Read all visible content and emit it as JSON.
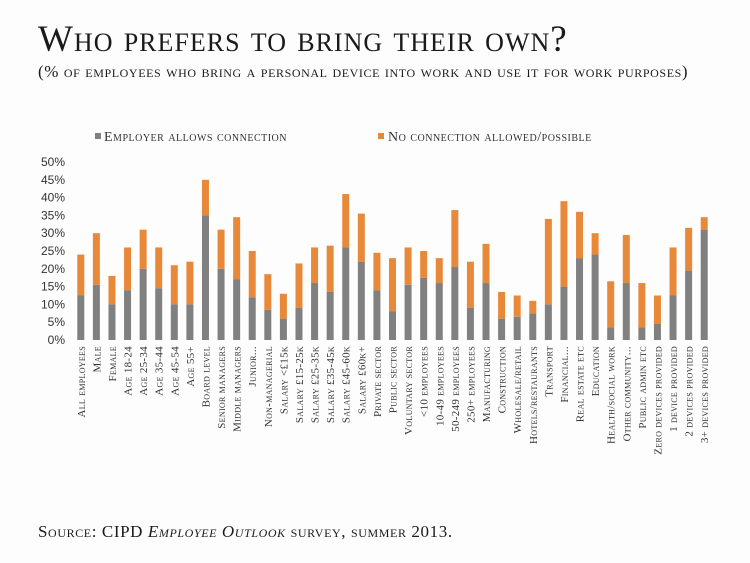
{
  "title": "Who prefers to bring their own?",
  "subtitle": "(% of employees who bring a personal device into work and use it for work purposes)",
  "source": {
    "prefix": "Source: CIPD ",
    "emphasis": "Employee Outlook",
    "suffix": " survey, summer 2013."
  },
  "colors": {
    "employer": "#808080",
    "noconnection": "#e8893a"
  },
  "chart_data": {
    "type": "bar",
    "stacked": true,
    "ylim": [
      0,
      50
    ],
    "yticks": [
      "0%",
      "5%",
      "10%",
      "15%",
      "20%",
      "25%",
      "30%",
      "35%",
      "40%",
      "45%",
      "50%"
    ],
    "legend_position": "top",
    "categories": [
      "All employees",
      "Male",
      "Female",
      "Age 18-24",
      "Age 25-34",
      "Age 35-44",
      "Age 45-54",
      "Age 55+",
      "Board level",
      "Senior managers",
      "Middle managers",
      "Junior...",
      "Non-managerial",
      "Salary <£15k",
      "Salary £15-25k",
      "Salary £25-35k",
      "Salary £35-45k",
      "Salary £45-60k",
      "Salary £60k+",
      "Private sector",
      "Public sector",
      "Voluntary sector",
      "<10 employees",
      "10-49 employees",
      "50-249 employees",
      "250+ employees",
      "Manufacturing",
      "Construction",
      "Wholesale/retail",
      "Hotels/restaurants",
      "Transport",
      "Financial...",
      "Real estate etc",
      "Education",
      "Health/social work",
      "Other community...",
      "Public admin etc",
      "Zero devices provided",
      "1 device provided",
      "2 devices provided",
      "3+ devices provided"
    ],
    "series": [
      {
        "name": "Employer allows connection",
        "values": [
          12.5,
          15.5,
          10,
          14,
          20,
          14.5,
          10,
          10,
          35,
          20,
          17,
          12,
          8.5,
          6,
          9,
          16,
          13.5,
          26,
          22,
          14,
          8,
          15.5,
          17.5,
          16,
          20.5,
          9,
          16,
          6,
          6.5,
          7.5,
          10,
          15,
          23,
          24,
          3.5,
          16,
          3.5,
          4.5,
          12.5,
          19.5,
          31
        ]
      },
      {
        "name": "No connection allowed/possible",
        "values": [
          11.5,
          14.5,
          8,
          12,
          11,
          11.5,
          11,
          12,
          10,
          11,
          17.5,
          13,
          10,
          7,
          12.5,
          10,
          13,
          15,
          13.5,
          10.5,
          15,
          10.5,
          7.5,
          7,
          16,
          13,
          11,
          7.5,
          6,
          3.5,
          24,
          24,
          13,
          6,
          13,
          13.5,
          12.5,
          8,
          13.5,
          12,
          3.5
        ]
      }
    ]
  }
}
